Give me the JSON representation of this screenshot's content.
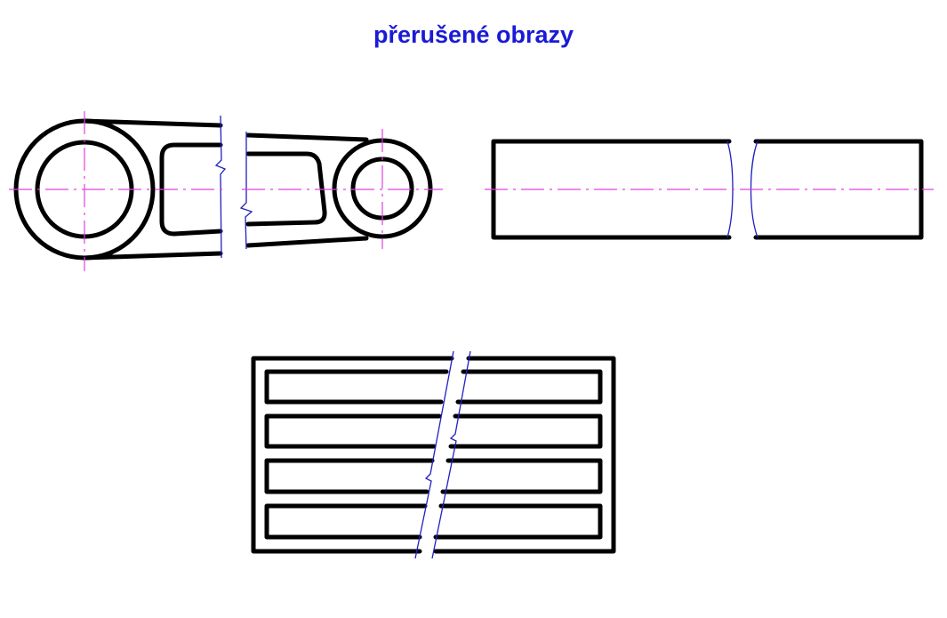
{
  "title": "přerušené obrazy",
  "colors": {
    "title": "#1a1ad6",
    "object_line": "#000000",
    "center_line": "#e040e0",
    "break_line": "#2020c0",
    "background": "#ffffff"
  },
  "figures": [
    {
      "name": "lever-arm-with-two-bosses",
      "break": "freehand zigzag break line"
    },
    {
      "name": "long-cylinder",
      "break": "curved S-shaped break lines"
    },
    {
      "name": "ribbed-plate",
      "break": "oblique break lines"
    }
  ]
}
